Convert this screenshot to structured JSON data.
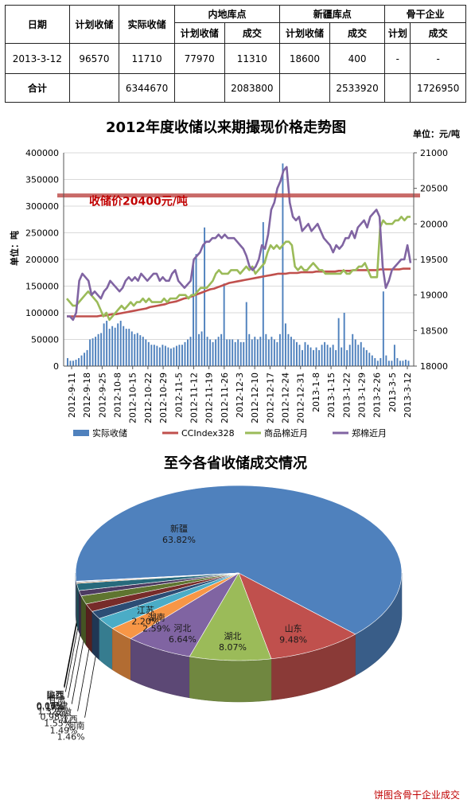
{
  "table": {
    "headers": {
      "date": "日期",
      "planned": "计划收储",
      "actual": "实际收储",
      "inland": "内地库点",
      "xinjiang": "新疆库点",
      "backbone": "骨干企业",
      "sub_planned": "计划收储",
      "sub_deal": "成交",
      "sub_plan": "计划"
    },
    "rows": [
      [
        "2013-3-12",
        "96570",
        "11710",
        "77970",
        "11310",
        "18600",
        "400",
        "-",
        "-"
      ],
      [
        "合计",
        "",
        "6344670",
        "",
        "2083800",
        "",
        "2533920",
        "",
        "1726950"
      ]
    ]
  },
  "chart_data": [
    {
      "type": "bar+line",
      "title": "2012年度收储以来期撮现价格走势图",
      "unit_right": "单位：元/吨",
      "ylabel_left": "单位：吨",
      "annotation": "收储价20400元/吨",
      "reference_line_value": 20400,
      "ylim_left": [
        0,
        400000
      ],
      "ylim_right": [
        18000,
        21000
      ],
      "yticks_left": [
        "0",
        "50000",
        "100000",
        "150000",
        "200000",
        "250000",
        "300000",
        "350000",
        "400000"
      ],
      "yticks_right": [
        "18000",
        "18500",
        "19000",
        "19500",
        "20000",
        "20500",
        "21000"
      ],
      "x_ticks": [
        "2012-9-11",
        "2012-9-18",
        "2012-9-25",
        "2012-10-8",
        "2012-10-15",
        "2012-10-22",
        "2012-10-29",
        "2012-11-5",
        "2012-11-12",
        "2012-11-19",
        "2012-11-26",
        "2012-12-3",
        "2012-12-10",
        "2012-12-17",
        "2012-12-24",
        "2012-12-31",
        "2013-1-8",
        "2013-1-15",
        "2013-1-22",
        "2013-1-29",
        "2013-2-26",
        "2013-3-5",
        "2013-3-12"
      ],
      "legend": [
        "实际收储",
        "CCIndex328",
        "商品棉近月",
        "郑棉近月"
      ],
      "series": [
        {
          "name": "实际收储",
          "axis": "left",
          "kind": "bar",
          "color": "#4f81bd",
          "values": [
            15000,
            10000,
            10000,
            12000,
            15000,
            20000,
            25000,
            30000,
            50000,
            52000,
            55000,
            60000,
            62000,
            80000,
            85000,
            70000,
            75000,
            72000,
            80000,
            85000,
            75000,
            70000,
            70000,
            65000,
            60000,
            62000,
            58000,
            55000,
            50000,
            45000,
            40000,
            40000,
            38000,
            35000,
            40000,
            38000,
            35000,
            33000,
            35000,
            38000,
            40000,
            40000,
            45000,
            50000,
            55000,
            190000,
            210000,
            60000,
            65000,
            260000,
            55000,
            50000,
            45000,
            50000,
            55000,
            60000,
            155000,
            50000,
            50000,
            50000,
            45000,
            50000,
            45000,
            45000,
            120000,
            60000,
            50000,
            55000,
            50000,
            55000,
            270000,
            60000,
            50000,
            55000,
            50000,
            45000,
            60000,
            380000,
            80000,
            60000,
            55000,
            50000,
            45000,
            40000,
            30000,
            45000,
            40000,
            35000,
            30000,
            35000,
            30000,
            40000,
            45000,
            40000,
            35000,
            40000,
            30000,
            90000,
            35000,
            100000,
            30000,
            40000,
            60000,
            50000,
            40000,
            45000,
            35000,
            30000,
            25000,
            20000,
            15000,
            10000,
            15000,
            140000,
            20000,
            10000,
            10000,
            40000,
            15000,
            10000,
            10000,
            12000,
            10000
          ]
        },
        {
          "name": "CCIndex328",
          "axis": "right",
          "kind": "line",
          "color": "#c0504d",
          "values": [
            18700,
            18700,
            18700,
            18700,
            18700,
            18700,
            18700,
            18700,
            18700,
            18710,
            18710,
            18720,
            18730,
            18730,
            18740,
            18750,
            18760,
            18770,
            18780,
            18790,
            18800,
            18810,
            18830,
            18840,
            18850,
            18860,
            18870,
            18890,
            18900,
            18910,
            18930,
            18950,
            18960,
            18980,
            19000,
            19020,
            19040,
            19060,
            19080,
            19090,
            19110,
            19130,
            19150,
            19170,
            19180,
            19190,
            19200,
            19210,
            19220,
            19230,
            19240,
            19250,
            19260,
            19270,
            19280,
            19290,
            19300,
            19300,
            19300,
            19310,
            19310,
            19310,
            19320,
            19320,
            19320,
            19320,
            19330,
            19330,
            19330,
            19330,
            19330,
            19330,
            19340,
            19340,
            19340,
            19340,
            19350,
            19350,
            19350,
            19350,
            19350,
            19350,
            19350,
            19360,
            19360,
            19360,
            19360,
            19360,
            19360,
            19370,
            19370,
            19370
          ]
        },
        {
          "name": "商品棉近月",
          "axis": "right",
          "kind": "line",
          "color": "#9bbb59",
          "values": [
            18950,
            18900,
            18850,
            18850,
            18900,
            18950,
            19000,
            19050,
            19000,
            18950,
            18900,
            18800,
            18700,
            18750,
            18650,
            18700,
            18750,
            18800,
            18850,
            18800,
            18850,
            18900,
            18850,
            18900,
            18900,
            18950,
            18900,
            18950,
            18900,
            18900,
            18900,
            18900,
            18950,
            18900,
            18950,
            18950,
            18950,
            19000,
            19000,
            19000,
            18950,
            19000,
            19000,
            19050,
            19100,
            19100,
            19100,
            19150,
            19200,
            19300,
            19350,
            19300,
            19300,
            19300,
            19350,
            19350,
            19350,
            19300,
            19350,
            19400,
            19350,
            19400,
            19300,
            19350,
            19400,
            19450,
            19600,
            19700,
            19650,
            19700,
            19650,
            19700,
            19750,
            19750,
            19700,
            19400,
            19350,
            19400,
            19350,
            19350,
            19400,
            19450,
            19400,
            19350,
            19350,
            19300,
            19300,
            19300,
            19300,
            19300,
            19300,
            19350,
            19300,
            19300,
            19350,
            19350,
            19400,
            19400,
            19450,
            19350,
            19250,
            19250,
            19250,
            19950,
            20050,
            20000,
            20000,
            20000,
            20050,
            20050,
            20100,
            20050,
            20100,
            20100
          ]
        },
        {
          "name": "郑棉近月",
          "axis": "right",
          "kind": "line",
          "color": "#8064a2",
          "values": [
            18700,
            18700,
            18650,
            18750,
            19200,
            19300,
            19250,
            19200,
            19000,
            19050,
            19000,
            18950,
            19050,
            19100,
            19200,
            19150,
            19100,
            19050,
            19100,
            19200,
            19250,
            19200,
            19250,
            19200,
            19300,
            19250,
            19200,
            19250,
            19300,
            19300,
            19200,
            19250,
            19200,
            19200,
            19300,
            19350,
            19200,
            19150,
            19100,
            19150,
            19200,
            19500,
            19550,
            19600,
            19700,
            19750,
            19750,
            19800,
            19800,
            19850,
            19800,
            19850,
            19800,
            19800,
            19800,
            19750,
            19700,
            19650,
            19550,
            19400,
            19350,
            19400,
            19500,
            19700,
            19650,
            19850,
            20200,
            20300,
            20500,
            20600,
            20750,
            20800,
            20300,
            20100,
            20050,
            20100,
            19900,
            19950,
            20000,
            19900,
            19950,
            20000,
            19900,
            19800,
            19750,
            19700,
            19600,
            19700,
            19650,
            19700,
            19800,
            19800,
            19900,
            19800,
            19950,
            20000,
            20050,
            19950,
            20100,
            20150,
            20200,
            20100,
            19400,
            19100,
            19200,
            19350,
            19400,
            19450,
            19500,
            19500,
            19700,
            19450
          ]
        }
      ]
    },
    {
      "type": "pie",
      "title": "至今各省收储成交情况",
      "note": "饼图含骨干企业成交",
      "slices": [
        {
          "name": "新疆",
          "value": 63.82,
          "label": "63.82%",
          "color": "#4f81bd"
        },
        {
          "name": "山东",
          "value": 9.48,
          "label": "9.48%",
          "color": "#c0504d"
        },
        {
          "name": "湖北",
          "value": 8.07,
          "label": "8.07%",
          "color": "#9bbb59"
        },
        {
          "name": "河北",
          "value": 6.64,
          "label": "6.64%",
          "color": "#8064a2"
        },
        {
          "name": "湖南",
          "value": 2.59,
          "label": "2.59%",
          "color": "#f79646"
        },
        {
          "name": "江苏",
          "value": 2.2,
          "label": "2.20%",
          "color": "#4bacc6"
        },
        {
          "name": "河南",
          "value": 1.46,
          "label": "1.46%",
          "color": "#2c4d75"
        },
        {
          "name": "江西",
          "value": 1.49,
          "label": "1.49%",
          "color": "#772c2a"
        },
        {
          "name": "安徽",
          "value": 1.55,
          "label": "1.55%",
          "color": "#5f7530"
        },
        {
          "name": "天津",
          "value": 0.98,
          "label": "0.98%",
          "color": "#4d3b62"
        },
        {
          "name": "甘肃",
          "value": 1.32,
          "label": "1.32%",
          "color": "#276a7c"
        },
        {
          "name": "浙江",
          "value": 0.17,
          "label": "0.17%",
          "color": "#b65708"
        },
        {
          "name": "陕西",
          "value": 0.16,
          "label": "0.16%",
          "color": "#729aca"
        },
        {
          "name": "山西",
          "value": 0.07,
          "label": "0.07%",
          "color": "#cd7371"
        }
      ]
    }
  ]
}
